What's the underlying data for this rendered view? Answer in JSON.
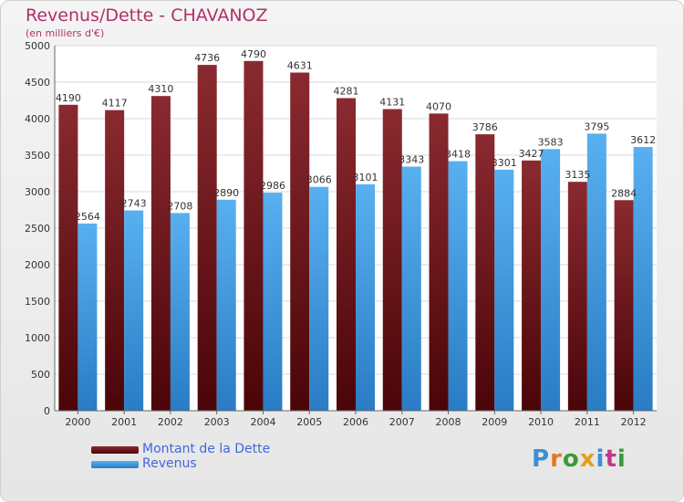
{
  "header": {
    "title": "Revenus/Dette - CHAVANOZ",
    "subtitle": "(en milliers d'€)"
  },
  "logo": {
    "text": "Proxiti"
  },
  "colors": {
    "dette": "#7a1f24",
    "dette_dark": "#4a0a0e",
    "revenus": "#4aa2e6",
    "revenus_dark": "#2a7ec4",
    "title": "#b0306a",
    "legend_text": "#4466dd"
  },
  "chart_data": {
    "type": "bar",
    "title": "Revenus/Dette - CHAVANOZ",
    "subtitle": "(en milliers d'€)",
    "categories": [
      "2000",
      "2001",
      "2002",
      "2003",
      "2004",
      "2005",
      "2006",
      "2007",
      "2008",
      "2009",
      "2010",
      "2011",
      "2012"
    ],
    "series": [
      {
        "name": "Montant de la Dette",
        "values": [
          4190,
          4117,
          4310,
          4736,
          4790,
          4631,
          4281,
          4131,
          4070,
          3786,
          3427,
          3135,
          2884
        ]
      },
      {
        "name": "Revenus",
        "values": [
          2564,
          2743,
          2708,
          2890,
          2986,
          3066,
          3101,
          3343,
          3418,
          3301,
          3583,
          3795,
          3612
        ]
      }
    ],
    "ylim": [
      0,
      5000
    ],
    "yticks": [
      0,
      500,
      1000,
      1500,
      2000,
      2500,
      3000,
      3500,
      4000,
      4500,
      5000
    ],
    "grid": true,
    "legend_position": "bottom-left"
  }
}
